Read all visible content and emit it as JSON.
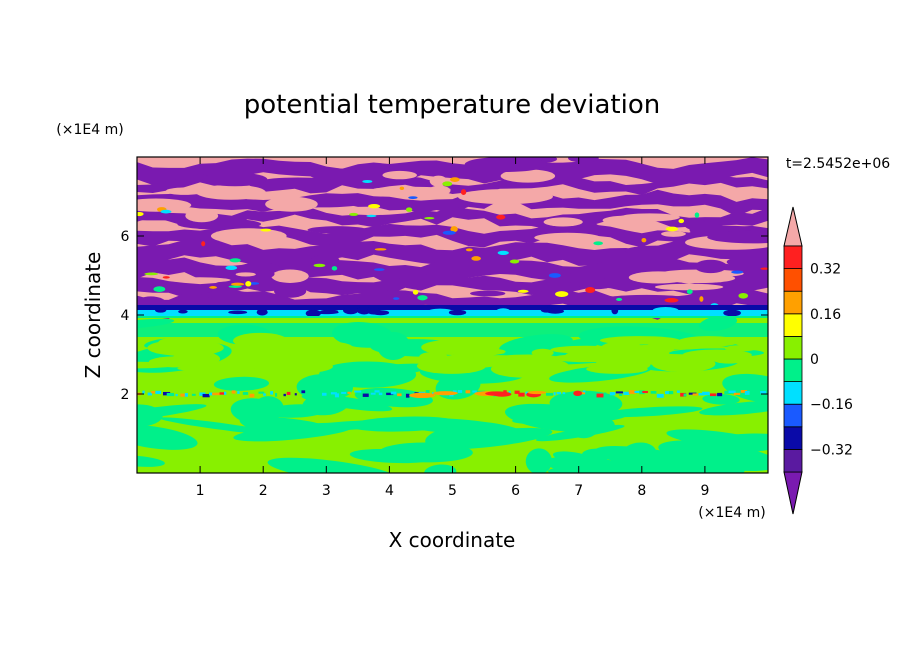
{
  "chart_data": {
    "type": "heatmap",
    "title": "potential temperature deviation",
    "xlabel": "X coordinate",
    "ylabel": "Z coordinate",
    "x_unit": "(×1E4 m)",
    "y_unit": "(×1E4 m)",
    "time_label": "t=2.5452e+06",
    "xlim": [
      0,
      10
    ],
    "ylim": [
      0,
      8
    ],
    "x_ticks": [
      1,
      2,
      3,
      4,
      5,
      6,
      7,
      8,
      9
    ],
    "x_tick_labels": [
      "1",
      "2",
      "3",
      "4",
      "5",
      "6",
      "7",
      "8",
      "9"
    ],
    "y_ticks": [
      2,
      4,
      6
    ],
    "y_tick_labels": [
      "2",
      "4",
      "6"
    ],
    "colorbar": {
      "labels": [
        {
          "value": 0.32,
          "text": "0.32"
        },
        {
          "value": 0.16,
          "text": "0.16"
        },
        {
          "value": 0,
          "text": "0"
        },
        {
          "value": -0.16,
          "text": "−0.16"
        },
        {
          "value": -0.32,
          "text": "−0.32"
        }
      ],
      "levels": [
        {
          "from": -0.4,
          "to": -0.32,
          "color": "#5a1aa0"
        },
        {
          "from": -0.32,
          "to": -0.24,
          "color": "#0a0aa8"
        },
        {
          "from": -0.24,
          "to": -0.16,
          "color": "#1a5aff"
        },
        {
          "from": -0.16,
          "to": -0.08,
          "color": "#00e0ff"
        },
        {
          "from": -0.08,
          "to": 0,
          "color": "#00f08a"
        },
        {
          "from": 0,
          "to": 0.08,
          "color": "#88f000"
        },
        {
          "from": 0.08,
          "to": 0.16,
          "color": "#ffff00"
        },
        {
          "from": 0.16,
          "to": 0.24,
          "color": "#ffa000"
        },
        {
          "from": 0.24,
          "to": 0.32,
          "color": "#ff5000"
        },
        {
          "from": 0.32,
          "to": 0.4,
          "color": "#ff2020"
        }
      ],
      "under_color": "#7a1ab0",
      "over_color": "#f4a8a8"
    },
    "fields": {
      "upper_pink": "#f4a8a8",
      "upper_purple": "#7a1ab0",
      "lower_green": "#88f000",
      "lower_seafoam": "#00f08a",
      "cyan_band": "#00e0ff",
      "dark_blue": "#0a0aa8"
    },
    "regions": {
      "upper_layer_z": [
        4.0,
        8.0
      ],
      "boundary_z": 4.0,
      "lower_layer_z": [
        0,
        3.9
      ],
      "mid_line_z": 2.0
    }
  }
}
